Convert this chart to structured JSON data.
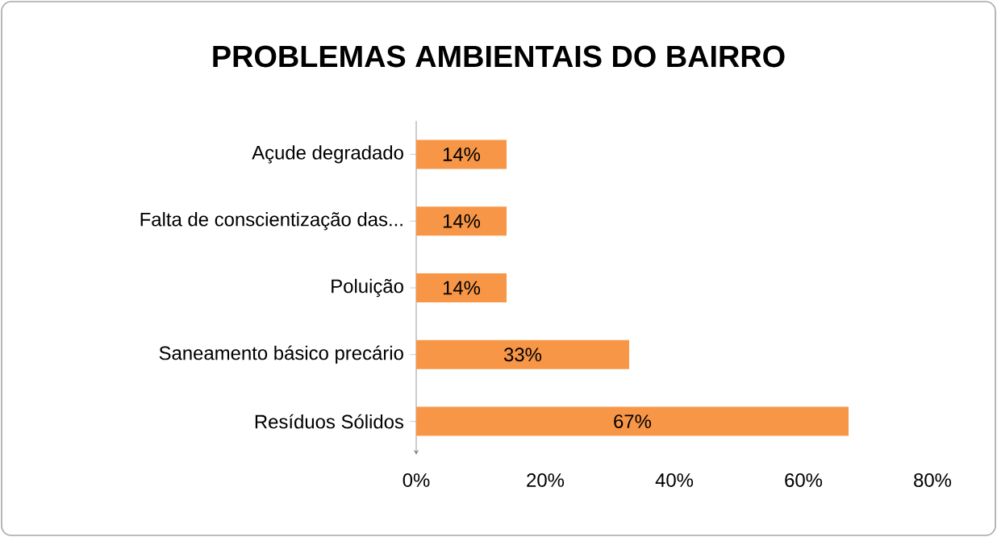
{
  "chart_data": {
    "type": "bar",
    "orientation": "horizontal",
    "title": "PROBLEMAS AMBIENTAIS DO BAIRRO",
    "categories": [
      "Açude degradado",
      "Falta de conscientização das...",
      "Poluição",
      "Saneamento básico precário",
      "Resíduos Sólidos"
    ],
    "values": [
      14,
      14,
      14,
      33,
      67
    ],
    "value_labels": [
      "14%",
      "14%",
      "14%",
      "33%",
      "67%"
    ],
    "color": "#f79646",
    "xlim": [
      0,
      80
    ],
    "xticks": [
      {
        "value": 0,
        "label": "0%"
      },
      {
        "value": 20,
        "label": "20%"
      },
      {
        "value": 40,
        "label": "40%"
      },
      {
        "value": 60,
        "label": "60%"
      },
      {
        "value": 80,
        "label": "80%"
      }
    ],
    "grid": false
  }
}
